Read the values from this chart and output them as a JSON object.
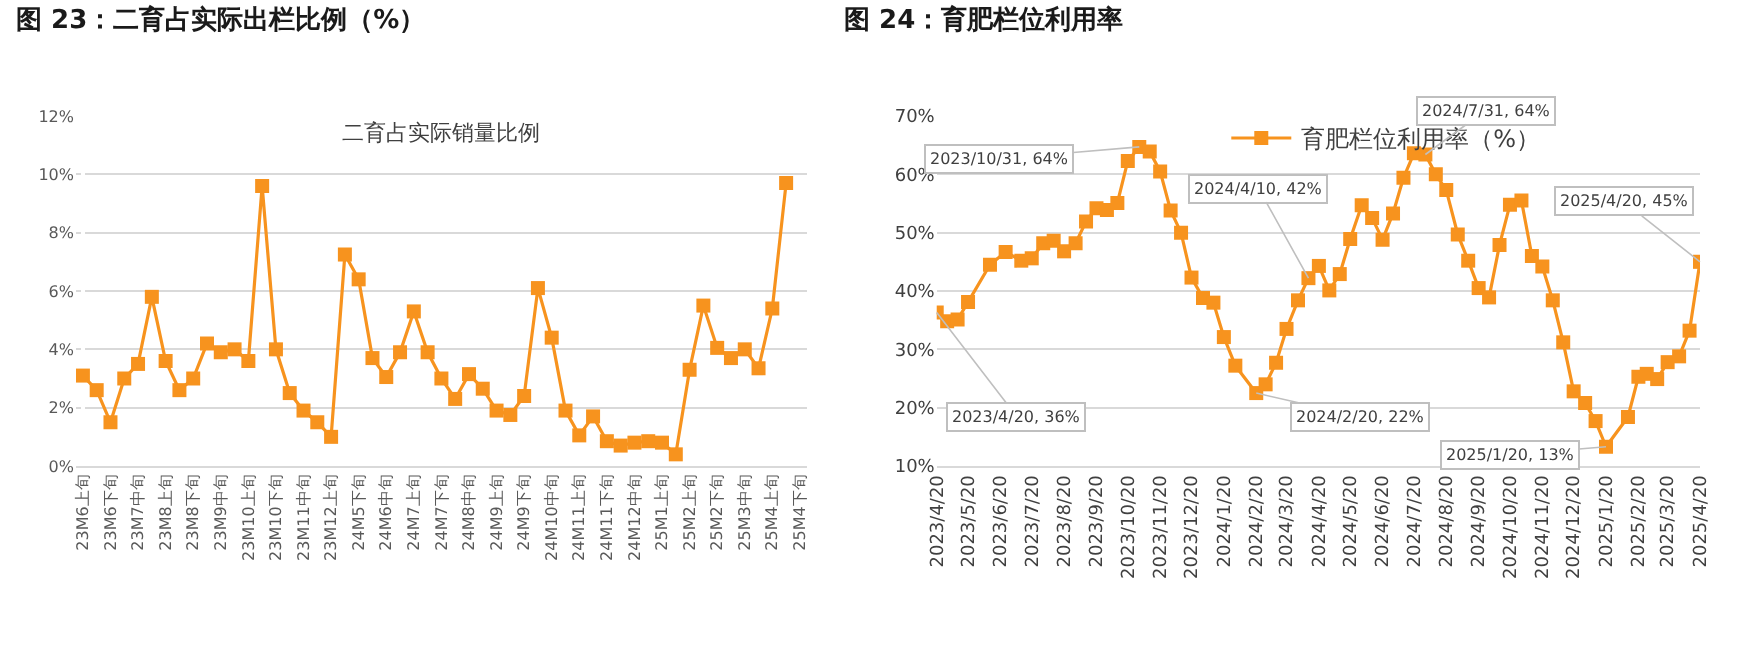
{
  "chart_data": [
    {
      "type": "line",
      "title": "图 23：二育占实际出栏比例（%）",
      "subtitle": "二育占实际销量比例",
      "categories": [
        "23M6上旬",
        null,
        "23M6下旬",
        null,
        "23M7中旬",
        null,
        "23M8上旬",
        null,
        "23M8下旬",
        null,
        "23M9中旬",
        null,
        "23M10上旬",
        null,
        "23M10下旬",
        null,
        "23M11中旬",
        null,
        "23M12上旬",
        null,
        "24M5下旬",
        null,
        "24M6中旬",
        null,
        "24M7上旬",
        null,
        "24M7下旬",
        null,
        "24M8中旬",
        null,
        "24M9上旬",
        null,
        "24M9下旬",
        null,
        "24M10中旬",
        null,
        "24M11上旬",
        null,
        "24M11下旬",
        null,
        "24M12中旬",
        null,
        "25M1上旬",
        null,
        "25M2上旬",
        null,
        "25M2下旬",
        null,
        "25M3中旬",
        null,
        "25M4上旬",
        null,
        "25M4下旬"
      ],
      "series": [
        {
          "color": "#f7931e",
          "values": [
            3.1,
            2.6,
            1.5,
            3.0,
            3.5,
            5.8,
            3.6,
            2.6,
            3.0,
            4.2,
            3.9,
            4.0,
            3.6,
            9.6,
            4.0,
            2.5,
            1.9,
            1.5,
            1.0,
            7.25,
            6.4,
            3.7,
            3.05,
            3.9,
            5.3,
            3.9,
            3.0,
            2.3,
            3.15,
            2.65,
            1.9,
            1.75,
            2.4,
            6.1,
            4.4,
            1.9,
            1.05,
            1.7,
            0.85,
            0.7,
            0.8,
            0.85,
            0.8,
            0.4,
            3.3,
            5.5,
            4.05,
            3.7,
            4.0,
            3.35,
            5.4,
            9.7,
            null
          ]
        }
      ],
      "ylim": [
        0,
        12
      ],
      "yticks": [
        {
          "value": 0,
          "label": "0%"
        },
        {
          "value": 2,
          "label": "2%"
        },
        {
          "value": 4,
          "label": "4%"
        },
        {
          "value": 6,
          "label": "6%"
        },
        {
          "value": 8,
          "label": "8%"
        },
        {
          "value": 10,
          "label": "10%"
        },
        {
          "value": 12,
          "label": "12%"
        }
      ],
      "grid": "y",
      "marker": "square",
      "line_style": "solid",
      "legend": false
    },
    {
      "type": "line",
      "title": "图 24：育肥栏位利用率",
      "x": [
        "2023-04-20",
        "2023-04-30",
        "2023-05-10",
        "2023-05-20",
        "2023-06-10",
        "2023-06-25",
        "2023-07-10",
        "2023-07-20",
        "2023-07-31",
        "2023-08-10",
        "2023-08-20",
        "2023-08-31",
        "2023-09-10",
        "2023-09-20",
        "2023-09-30",
        "2023-10-10",
        "2023-10-20",
        "2023-10-31",
        "2023-11-10",
        "2023-11-20",
        "2023-11-30",
        "2023-12-10",
        "2023-12-20",
        "2023-12-31",
        "2024-01-10",
        "2024-01-20",
        "2024-01-31",
        "2024-02-20",
        "2024-02-29",
        "2024-03-10",
        "2024-03-20",
        "2024-03-31",
        "2024-04-10",
        "2024-04-20",
        "2024-04-30",
        "2024-05-10",
        "2024-05-20",
        "2024-05-31",
        "2024-06-10",
        "2024-06-20",
        "2024-06-30",
        "2024-07-10",
        "2024-07-20",
        "2024-07-31",
        "2024-08-10",
        "2024-08-20",
        "2024-08-31",
        "2024-09-10",
        "2024-09-20",
        "2024-09-30",
        "2024-10-10",
        "2024-10-20",
        "2024-10-31",
        "2024-11-10",
        "2024-11-20",
        "2024-11-30",
        "2024-12-10",
        "2024-12-20",
        "2024-12-31",
        "2025-01-10",
        "2025-01-20",
        "2025-02-10",
        "2025-02-20",
        "2025-02-28",
        "2025-03-10",
        "2025-03-20",
        "2025-03-31",
        "2025-04-10",
        "2025-04-20"
      ],
      "series": [
        {
          "name": "育肥栏位利用率（%）",
          "color": "#f7931e",
          "values": [
            36.3,
            34.8,
            35.1,
            38.1,
            44.5,
            46.7,
            45.2,
            45.6,
            48.2,
            48.6,
            46.8,
            48.2,
            51.9,
            54.2,
            53.9,
            55.1,
            62.3,
            64.7,
            63.9,
            60.5,
            53.8,
            50.0,
            42.3,
            38.8,
            38.0,
            32.1,
            27.2,
            22.5,
            24.0,
            27.7,
            33.5,
            38.4,
            42.2,
            44.3,
            40.1,
            42.9,
            48.9,
            54.7,
            52.5,
            48.8,
            53.3,
            59.4,
            63.6,
            63.4,
            60.0,
            57.3,
            49.7,
            45.2,
            40.5,
            38.9,
            47.9,
            54.8,
            55.5,
            46.0,
            44.2,
            38.4,
            31.2,
            22.8,
            20.8,
            17.7,
            13.3,
            18.4,
            25.3,
            25.8,
            24.9,
            27.8,
            28.8,
            33.2,
            45.0
          ]
        }
      ],
      "xlim": [
        "2023-04-20",
        "2025-04-20"
      ],
      "xticks": [
        {
          "value": "2023-04-20",
          "label": "2023/4/20"
        },
        {
          "value": "2023-05-20",
          "label": "2023/5/20"
        },
        {
          "value": "2023-06-20",
          "label": "2023/6/20"
        },
        {
          "value": "2023-07-20",
          "label": "2023/7/20"
        },
        {
          "value": "2023-08-20",
          "label": "2023/8/20"
        },
        {
          "value": "2023-09-20",
          "label": "2023/9/20"
        },
        {
          "value": "2023-10-20",
          "label": "2023/10/20"
        },
        {
          "value": "2023-11-20",
          "label": "2023/11/20"
        },
        {
          "value": "2023-12-20",
          "label": "2023/12/20"
        },
        {
          "value": "2024-01-20",
          "label": "2024/1/20"
        },
        {
          "value": "2024-02-20",
          "label": "2024/2/20"
        },
        {
          "value": "2024-03-20",
          "label": "2024/3/20"
        },
        {
          "value": "2024-04-20",
          "label": "2024/4/20"
        },
        {
          "value": "2024-05-20",
          "label": "2024/5/20"
        },
        {
          "value": "2024-06-20",
          "label": "2024/6/20"
        },
        {
          "value": "2024-07-20",
          "label": "2024/7/20"
        },
        {
          "value": "2024-08-20",
          "label": "2024/8/20"
        },
        {
          "value": "2024-09-20",
          "label": "2024/9/20"
        },
        {
          "value": "2024-10-20",
          "label": "2024/10/20"
        },
        {
          "value": "2024-11-20",
          "label": "2024/11/20"
        },
        {
          "value": "2024-12-20",
          "label": "2024/12/20"
        },
        {
          "value": "2025-01-20",
          "label": "2025/1/20"
        },
        {
          "value": "2025-02-20",
          "label": "2025/2/20"
        },
        {
          "value": "2025-03-20",
          "label": "2025/3/20"
        },
        {
          "value": "2025-04-20",
          "label": "2025/4/20"
        }
      ],
      "ylim": [
        10,
        70
      ],
      "yticks": [
        {
          "value": 10,
          "label": "10%"
        },
        {
          "value": 20,
          "label": "20%"
        },
        {
          "value": 30,
          "label": "30%"
        },
        {
          "value": 40,
          "label": "40%"
        },
        {
          "value": 50,
          "label": "50%"
        },
        {
          "value": 60,
          "label": "60%"
        },
        {
          "value": 70,
          "label": "70%"
        }
      ],
      "annotations": [
        {
          "text": "2023/4/20, 36%",
          "x": "2023-04-20",
          "y": 36.3
        },
        {
          "text": "2023/10/31, 64%",
          "x": "2023-10-31",
          "y": 64.7
        },
        {
          "text": "2024/2/20, 22%",
          "x": "2024-02-20",
          "y": 22.5
        },
        {
          "text": "2024/4/10, 42%",
          "x": "2024-04-10",
          "y": 42.2
        },
        {
          "text": "2024/7/31, 64%",
          "x": "2024-07-31",
          "y": 63.4
        },
        {
          "text": "2025/1/20, 13%",
          "x": "2025-01-20",
          "y": 13.3
        },
        {
          "text": "2025/4/20, 45%",
          "x": "2025-04-20",
          "y": 45.0
        }
      ],
      "grid": "y",
      "marker": "square",
      "line_style": "solid",
      "legend": "top"
    }
  ]
}
